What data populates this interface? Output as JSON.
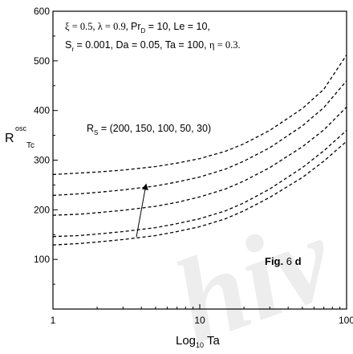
{
  "chart_data": {
    "type": "line",
    "x_scale": "log",
    "xlim": [
      1,
      100
    ],
    "ylim": [
      0,
      600
    ],
    "x_ticks": [
      1,
      10,
      100
    ],
    "y_ticks": [
      100,
      200,
      300,
      400,
      500,
      600
    ],
    "x_tick_labels": [
      "1",
      "10",
      "100"
    ],
    "y_tick_labels": [
      "100",
      "200",
      "300",
      "400",
      "500",
      "600"
    ],
    "xlabel": {
      "base": "Log",
      "sub": "10",
      "rest": " Ta"
    },
    "ylabel": {
      "base": "R",
      "sup": "osc",
      "sub": "Tc"
    },
    "line_style": "dashed",
    "line_color": "#000000",
    "params_line1": [
      {
        "text": "ξ = 0.5,  λ = 0.9, ",
        "font": "serif"
      },
      {
        "text": "Pr",
        "font": "sans"
      },
      {
        "text": "D",
        "font": "sans",
        "sub": true
      },
      {
        "text": " = 10, Le = 10,",
        "font": "sans"
      }
    ],
    "params_line2": [
      {
        "text": "S",
        "font": "sans"
      },
      {
        "text": "r",
        "font": "sans",
        "sub": true
      },
      {
        "text": " = 0.001, Da = 0.05, Ta = 100, ",
        "font": "sans"
      },
      {
        "text": "η = 0.3.",
        "font": "serif"
      }
    ],
    "rs_label": {
      "base": "R",
      "sub": "S",
      "rest": " = (200, 150, 100, 50, 30)"
    },
    "fig_label": {
      "prefix": "Fig. ",
      "num": "6",
      "suffix": " d"
    },
    "watermark": "hiv",
    "series": [
      {
        "x": [
          1,
          1.5,
          2,
          3,
          5,
          7,
          10,
          15,
          20,
          30,
          50,
          70,
          100
        ],
        "values": [
          271,
          274,
          276,
          280,
          287,
          294,
          303,
          318,
          333,
          360,
          404,
          443,
          512
        ]
      },
      {
        "x": [
          1,
          1.5,
          2,
          3,
          5,
          7,
          10,
          15,
          20,
          30,
          50,
          70,
          100
        ],
        "values": [
          229,
          232,
          235,
          240,
          248,
          256,
          266,
          282,
          298,
          325,
          369,
          406,
          460
        ]
      },
      {
        "x": [
          1,
          1.5,
          2,
          3,
          5,
          7,
          10,
          15,
          20,
          30,
          50,
          70,
          100
        ],
        "values": [
          189,
          191,
          194,
          199,
          207,
          215,
          226,
          242,
          258,
          285,
          327,
          361,
          407
        ]
      },
      {
        "x": [
          1,
          1.5,
          2,
          3,
          5,
          7,
          10,
          15,
          20,
          30,
          50,
          70,
          100
        ],
        "values": [
          146,
          148,
          151,
          156,
          164,
          172,
          182,
          198,
          214,
          242,
          285,
          319,
          360
        ]
      },
      {
        "x": [
          1,
          1.5,
          2,
          3,
          5,
          7,
          10,
          15,
          20,
          30,
          50,
          70,
          100
        ],
        "values": [
          129,
          132,
          135,
          140,
          148,
          156,
          166,
          182,
          198,
          225,
          265,
          298,
          338
        ]
      }
    ],
    "arrow": {
      "from": [
        3.7,
        145
      ],
      "to": [
        4.3,
        250
      ]
    }
  }
}
